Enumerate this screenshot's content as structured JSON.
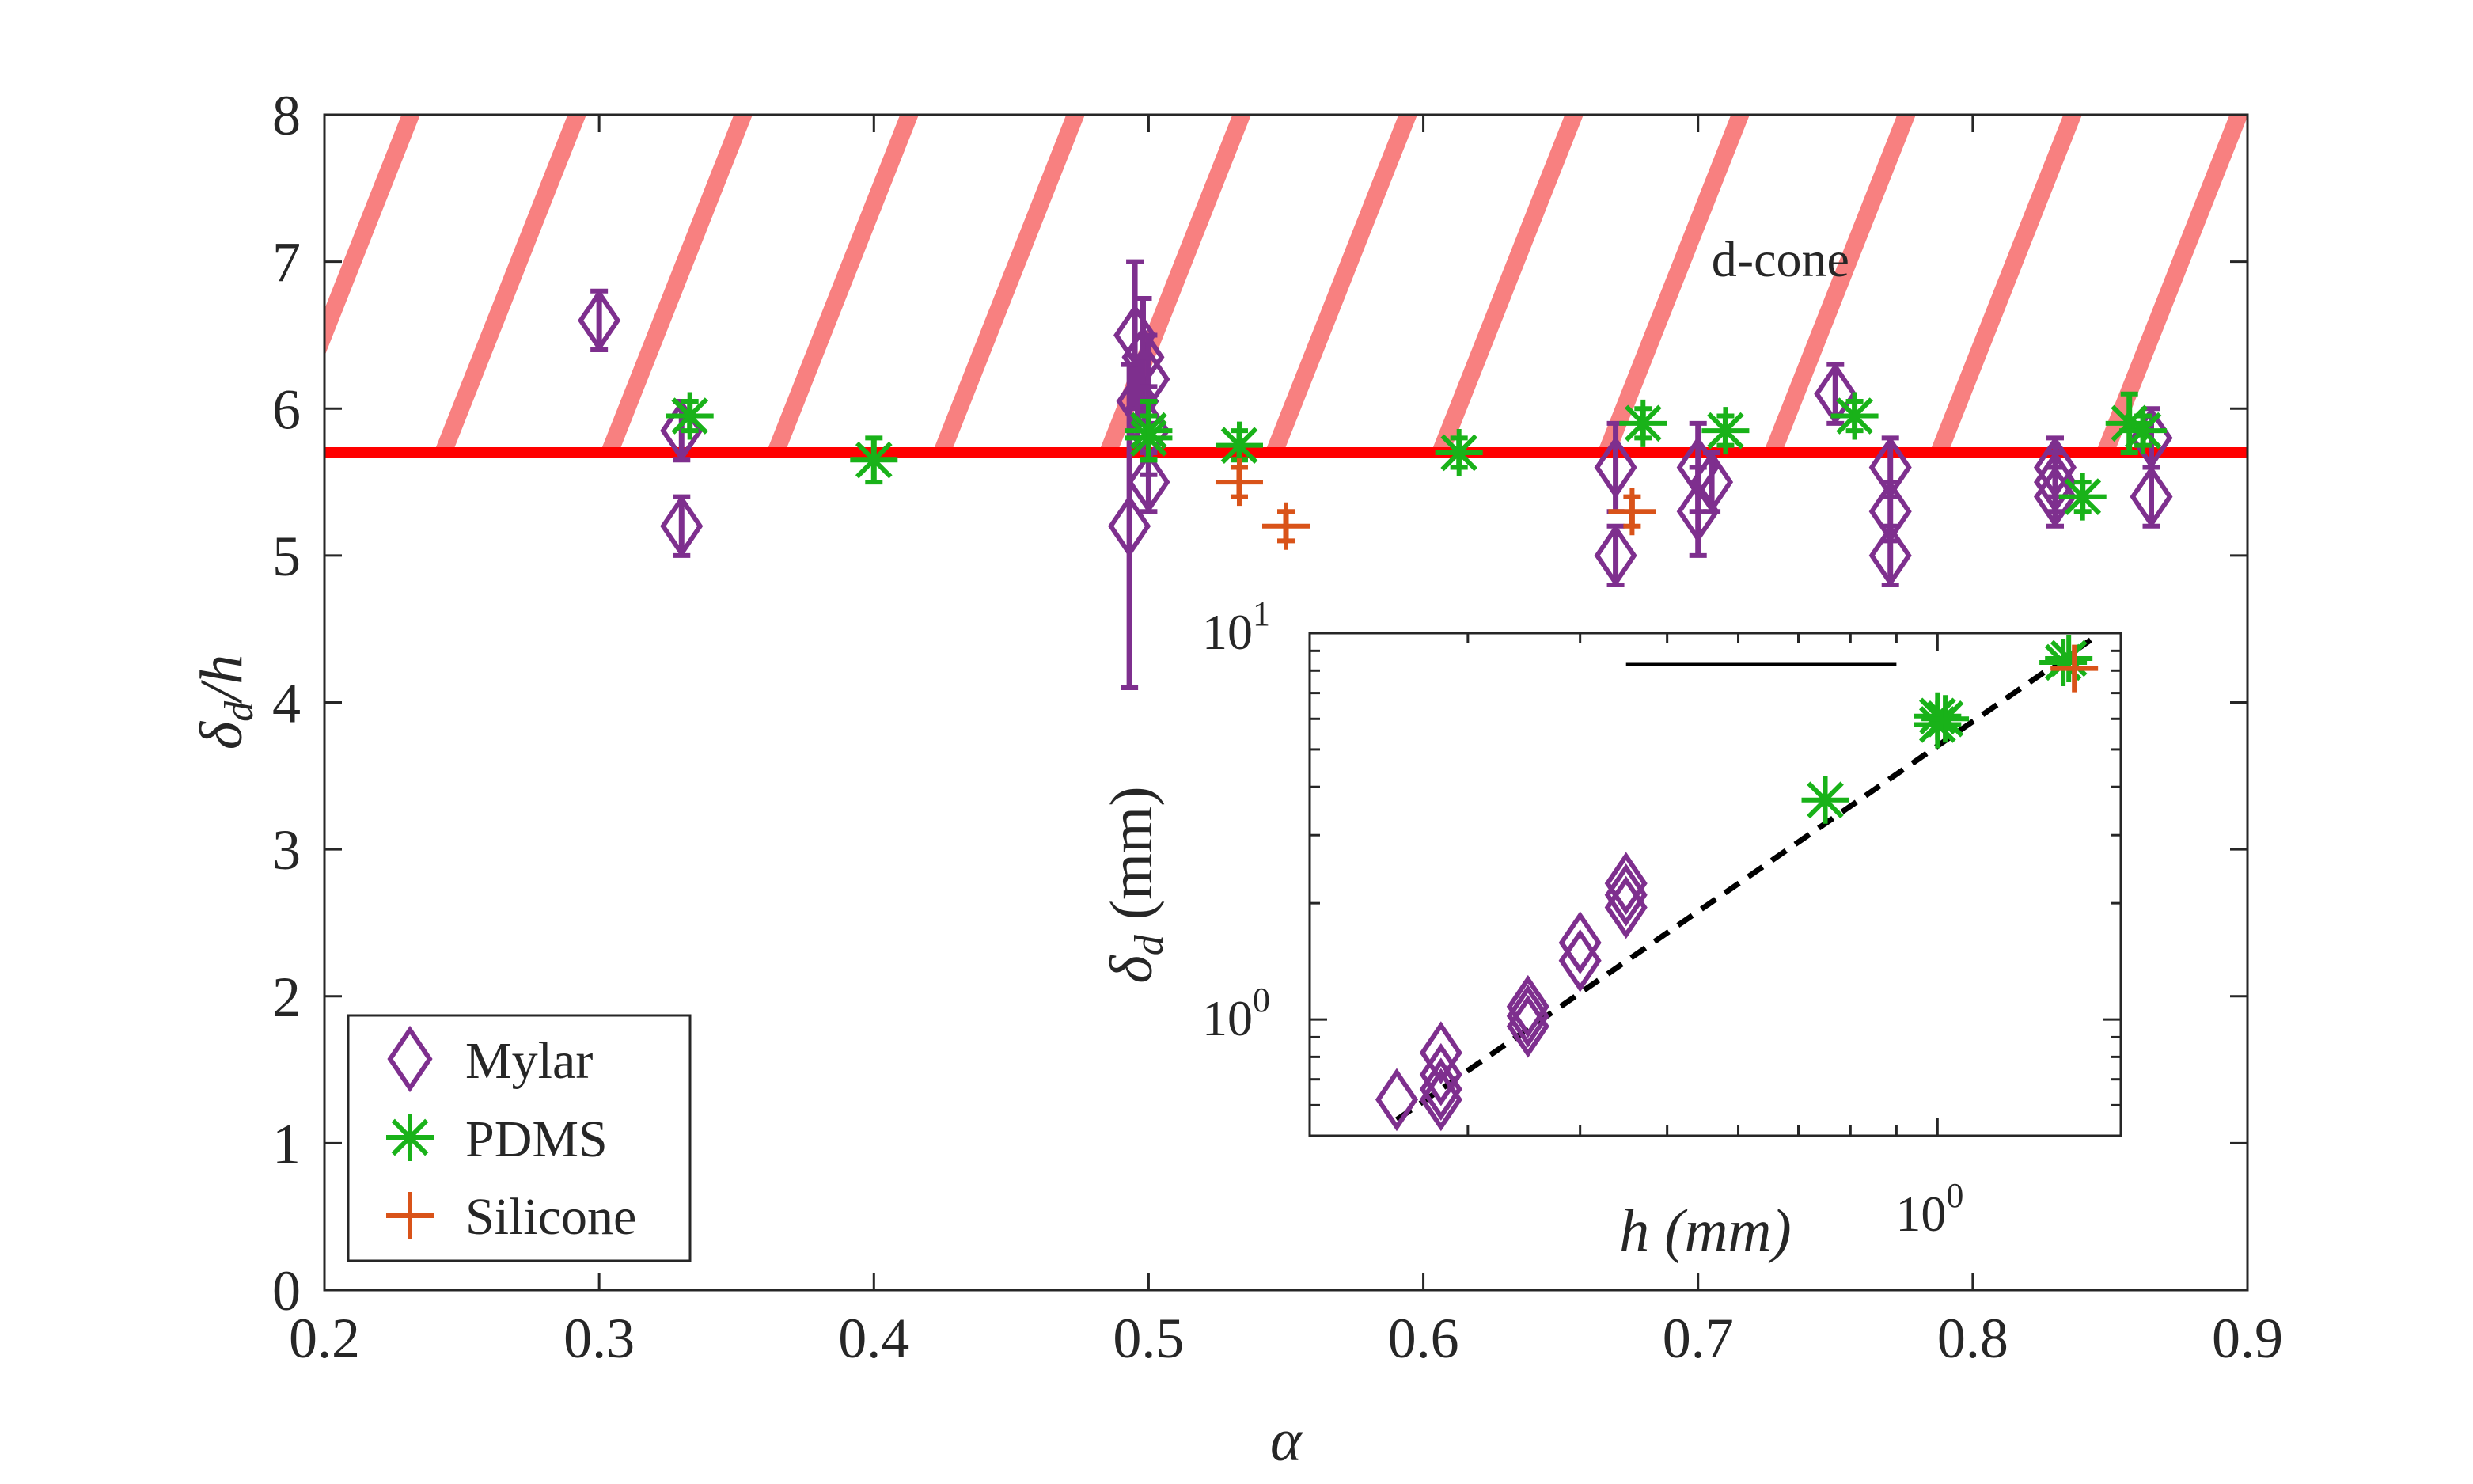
{
  "colors": {
    "mylar": "#7e2f8e",
    "pdms": "#19b219",
    "silicone": "#d95319",
    "threshold": "#ff0000",
    "hatch": "#f88080",
    "axis": "#262626"
  },
  "chart_data": [
    {
      "type": "scatter",
      "title": "",
      "xlabel": "α",
      "ylabel": "δ_d / h",
      "xlim": [
        0.2,
        0.9
      ],
      "ylim": [
        0,
        8
      ],
      "xticks": [
        "0.2",
        "0.3",
        "0.4",
        "0.5",
        "0.6",
        "0.7",
        "0.8",
        "0.9"
      ],
      "yticks": [
        "0",
        "1",
        "2",
        "3",
        "4",
        "5",
        "6",
        "7",
        "8"
      ],
      "threshold_line": {
        "y": 5.7
      },
      "region_label": "d-cone",
      "region_range": [
        5.7,
        8
      ],
      "legend": [
        "Mylar",
        "PDMS",
        "Silicone"
      ],
      "legend_position": "lower-left",
      "series": [
        {
          "name": "Mylar",
          "marker": "diamond",
          "points": [
            {
              "x": 0.3,
              "y": 6.6,
              "err": 0.2
            },
            {
              "x": 0.33,
              "y": 5.85,
              "err": 0.2
            },
            {
              "x": 0.33,
              "y": 5.2,
              "err": 0.2
            },
            {
              "x": 0.495,
              "y": 6.5,
              "err": 0.5
            },
            {
              "x": 0.498,
              "y": 6.35,
              "err": 0.4
            },
            {
              "x": 0.5,
              "y": 6.2,
              "err": 0.3
            },
            {
              "x": 0.496,
              "y": 6.05,
              "err": 0.3
            },
            {
              "x": 0.5,
              "y": 5.85,
              "err": 0.3
            },
            {
              "x": 0.5,
              "y": 5.5,
              "err": 0.2
            },
            {
              "x": 0.493,
              "y": 5.2,
              "err": 1.1
            },
            {
              "x": 0.67,
              "y": 5.6,
              "err": 0.3
            },
            {
              "x": 0.67,
              "y": 5.0,
              "err": 0.2
            },
            {
              "x": 0.7,
              "y": 5.6,
              "err": 0.3
            },
            {
              "x": 0.7,
              "y": 5.3,
              "err": 0.3
            },
            {
              "x": 0.705,
              "y": 5.5,
              "err": 0.2
            },
            {
              "x": 0.75,
              "y": 6.1,
              "err": 0.2
            },
            {
              "x": 0.77,
              "y": 5.6,
              "err": 0.2
            },
            {
              "x": 0.77,
              "y": 5.3,
              "err": 0.2
            },
            {
              "x": 0.77,
              "y": 5.0,
              "err": 0.2
            },
            {
              "x": 0.83,
              "y": 5.6,
              "err": 0.2
            },
            {
              "x": 0.83,
              "y": 5.5,
              "err": 0.2
            },
            {
              "x": 0.83,
              "y": 5.4,
              "err": 0.2
            },
            {
              "x": 0.865,
              "y": 5.8,
              "err": 0.2
            },
            {
              "x": 0.865,
              "y": 5.4,
              "err": 0.2
            }
          ]
        },
        {
          "name": "PDMS",
          "marker": "asterisk",
          "points": [
            {
              "x": 0.333,
              "y": 5.95,
              "err": 0.1
            },
            {
              "x": 0.4,
              "y": 5.65,
              "err": 0.15
            },
            {
              "x": 0.5,
              "y": 5.85,
              "err": 0.2
            },
            {
              "x": 0.5,
              "y": 5.8,
              "err": 0.15
            },
            {
              "x": 0.533,
              "y": 5.75,
              "err": 0.1
            },
            {
              "x": 0.613,
              "y": 5.7,
              "err": 0.1
            },
            {
              "x": 0.68,
              "y": 5.9,
              "err": 0.1
            },
            {
              "x": 0.71,
              "y": 5.85,
              "err": 0.1
            },
            {
              "x": 0.757,
              "y": 5.95,
              "err": 0.1
            },
            {
              "x": 0.84,
              "y": 5.4,
              "err": 0.1
            },
            {
              "x": 0.857,
              "y": 5.9,
              "err": 0.2
            },
            {
              "x": 0.862,
              "y": 5.85,
              "err": 0.1
            }
          ]
        },
        {
          "name": "Silicone",
          "marker": "plus",
          "points": [
            {
              "x": 0.533,
              "y": 5.5,
              "err": 0.1
            },
            {
              "x": 0.55,
              "y": 5.2,
              "err": 0.1
            },
            {
              "x": 0.676,
              "y": 5.3,
              "err": 0.1
            }
          ]
        }
      ]
    },
    {
      "type": "scatter",
      "title": "",
      "inset": true,
      "scale": "log-log",
      "xlabel": "h (mm)",
      "ylabel": "δ_d (mm)",
      "xlim": [
        0.2,
        1.6
      ],
      "ylim": [
        0.5,
        10
      ],
      "xtick_labels": [
        {
          "base": "10",
          "exp": "0",
          "value": 1
        }
      ],
      "ytick_labels": [
        {
          "base": "10",
          "exp": "1",
          "value": 10
        },
        {
          "base": "10",
          "exp": "0",
          "value": 1
        }
      ],
      "fit_line": {
        "style": "dashed",
        "x": [
          0.25,
          1.5
        ],
        "y": [
          0.55,
          9.8
        ]
      },
      "scale_bar": {
        "x": [
          0.45,
          0.9
        ],
        "y": 8.3
      },
      "series": [
        {
          "name": "Mylar",
          "marker": "diamond",
          "points": [
            {
              "x": 0.25,
              "y": 0.62
            },
            {
              "x": 0.28,
              "y": 0.82
            },
            {
              "x": 0.28,
              "y": 0.72
            },
            {
              "x": 0.28,
              "y": 0.66
            },
            {
              "x": 0.28,
              "y": 0.62
            },
            {
              "x": 0.35,
              "y": 1.08
            },
            {
              "x": 0.35,
              "y": 1.02
            },
            {
              "x": 0.35,
              "y": 0.96
            },
            {
              "x": 0.4,
              "y": 1.58
            },
            {
              "x": 0.4,
              "y": 1.42
            },
            {
              "x": 0.45,
              "y": 2.25
            },
            {
              "x": 0.45,
              "y": 2.1
            },
            {
              "x": 0.45,
              "y": 1.95
            }
          ]
        },
        {
          "name": "PDMS",
          "marker": "asterisk",
          "points": [
            {
              "x": 0.75,
              "y": 3.7
            },
            {
              "x": 1.0,
              "y": 6.1
            },
            {
              "x": 1.0,
              "y": 5.8
            },
            {
              "x": 1.02,
              "y": 6.0
            },
            {
              "x": 1.4,
              "y": 8.6
            },
            {
              "x": 1.38,
              "y": 8.4
            }
          ]
        },
        {
          "name": "Silicone",
          "marker": "plus",
          "points": [
            {
              "x": 1.42,
              "y": 8.1
            }
          ]
        }
      ]
    }
  ]
}
